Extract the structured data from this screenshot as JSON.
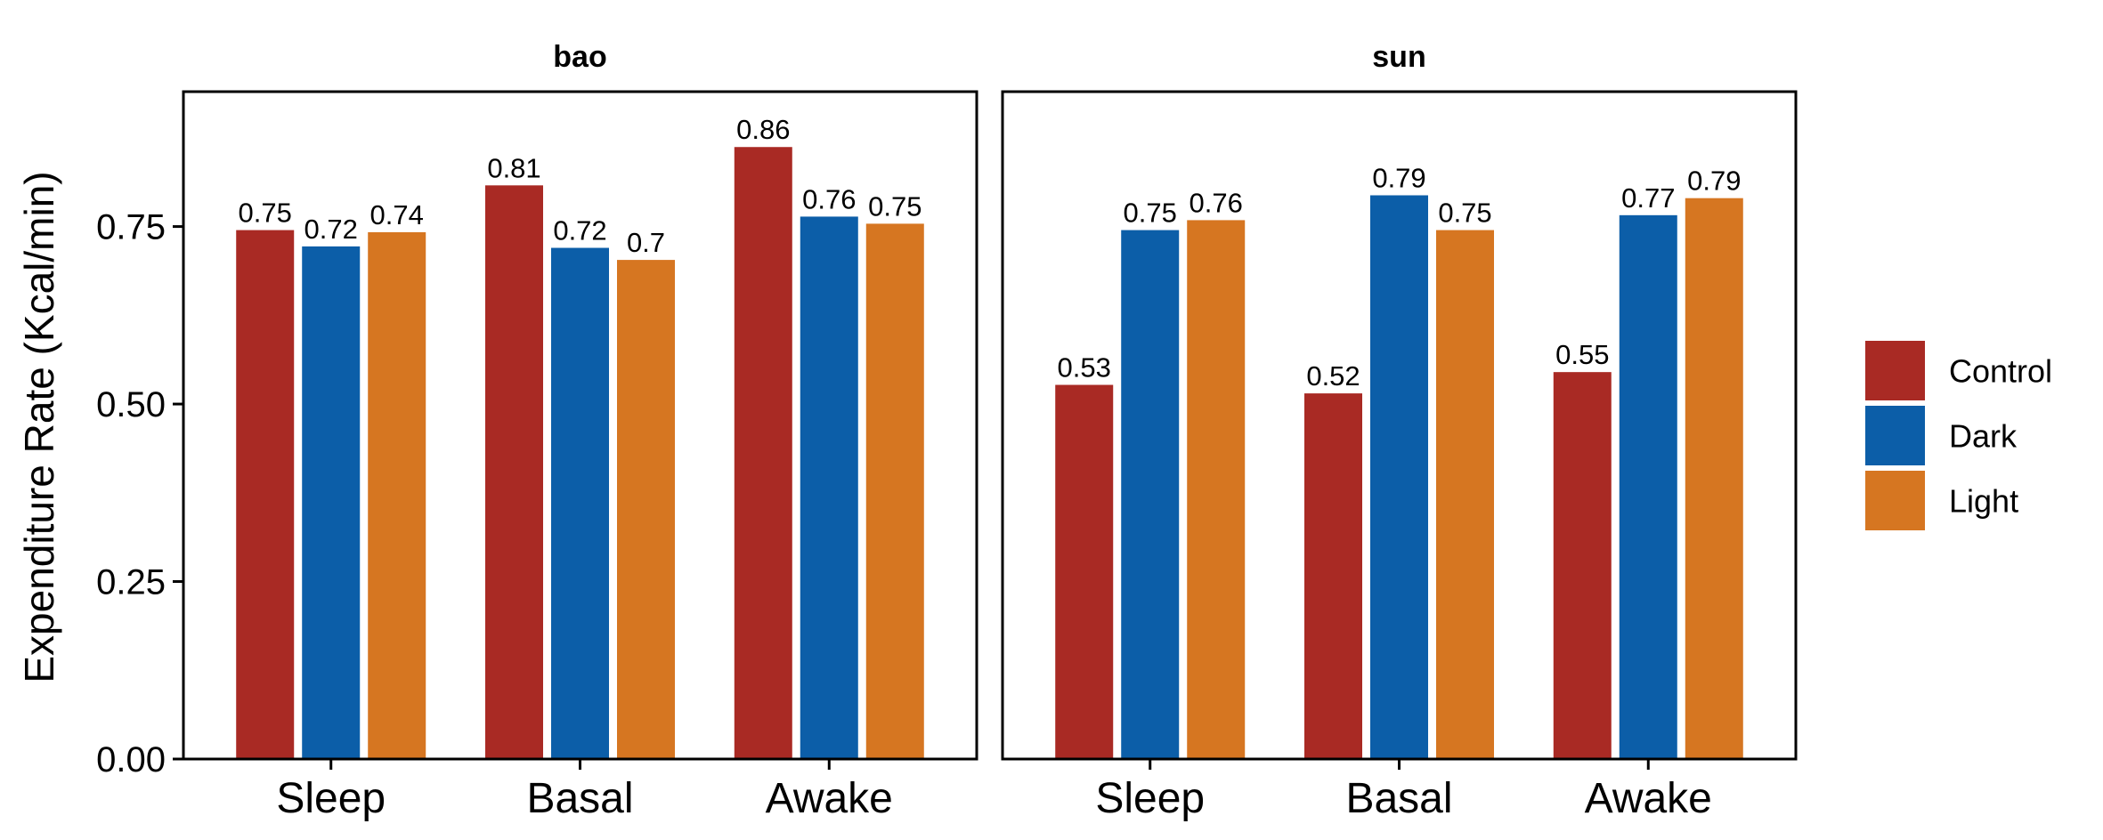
{
  "chart_data": {
    "type": "bar",
    "ylabel": "Expenditure Rate (Kcal/min)",
    "ylim": [
      0,
      0.94
    ],
    "yticks": [
      "0.00",
      "0.25",
      "0.50",
      "0.75"
    ],
    "ytick_values": [
      0,
      0.25,
      0.5,
      0.75
    ],
    "categories": [
      "Sleep",
      "Basal",
      "Awake"
    ],
    "legend": {
      "placement": "right",
      "entries": [
        "Control",
        "Dark",
        "Light"
      ]
    },
    "series_colors": {
      "Control": "#A92A24",
      "Dark": "#0C5EA8",
      "Light": "#D67621"
    },
    "facets": [
      {
        "title": "bao",
        "series": [
          {
            "name": "Control",
            "values": [
              0.745,
              0.808,
              0.862
            ],
            "labels": [
              "0.75",
              "0.81",
              "0.86"
            ]
          },
          {
            "name": "Dark",
            "values": [
              0.722,
              0.72,
              0.764
            ],
            "labels": [
              "0.72",
              "0.72",
              "0.76"
            ]
          },
          {
            "name": "Light",
            "values": [
              0.742,
              0.703,
              0.754
            ],
            "labels": [
              "0.74",
              "0.7",
              "0.75"
            ]
          }
        ]
      },
      {
        "title": "sun",
        "series": [
          {
            "name": "Control",
            "values": [
              0.527,
              0.515,
              0.545
            ],
            "labels": [
              "0.53",
              "0.52",
              "0.55"
            ]
          },
          {
            "name": "Dark",
            "values": [
              0.745,
              0.794,
              0.766
            ],
            "labels": [
              "0.75",
              "0.79",
              "0.77"
            ]
          },
          {
            "name": "Light",
            "values": [
              0.759,
              0.745,
              0.79
            ],
            "labels": [
              "0.76",
              "0.75",
              "0.79"
            ]
          }
        ]
      }
    ]
  }
}
